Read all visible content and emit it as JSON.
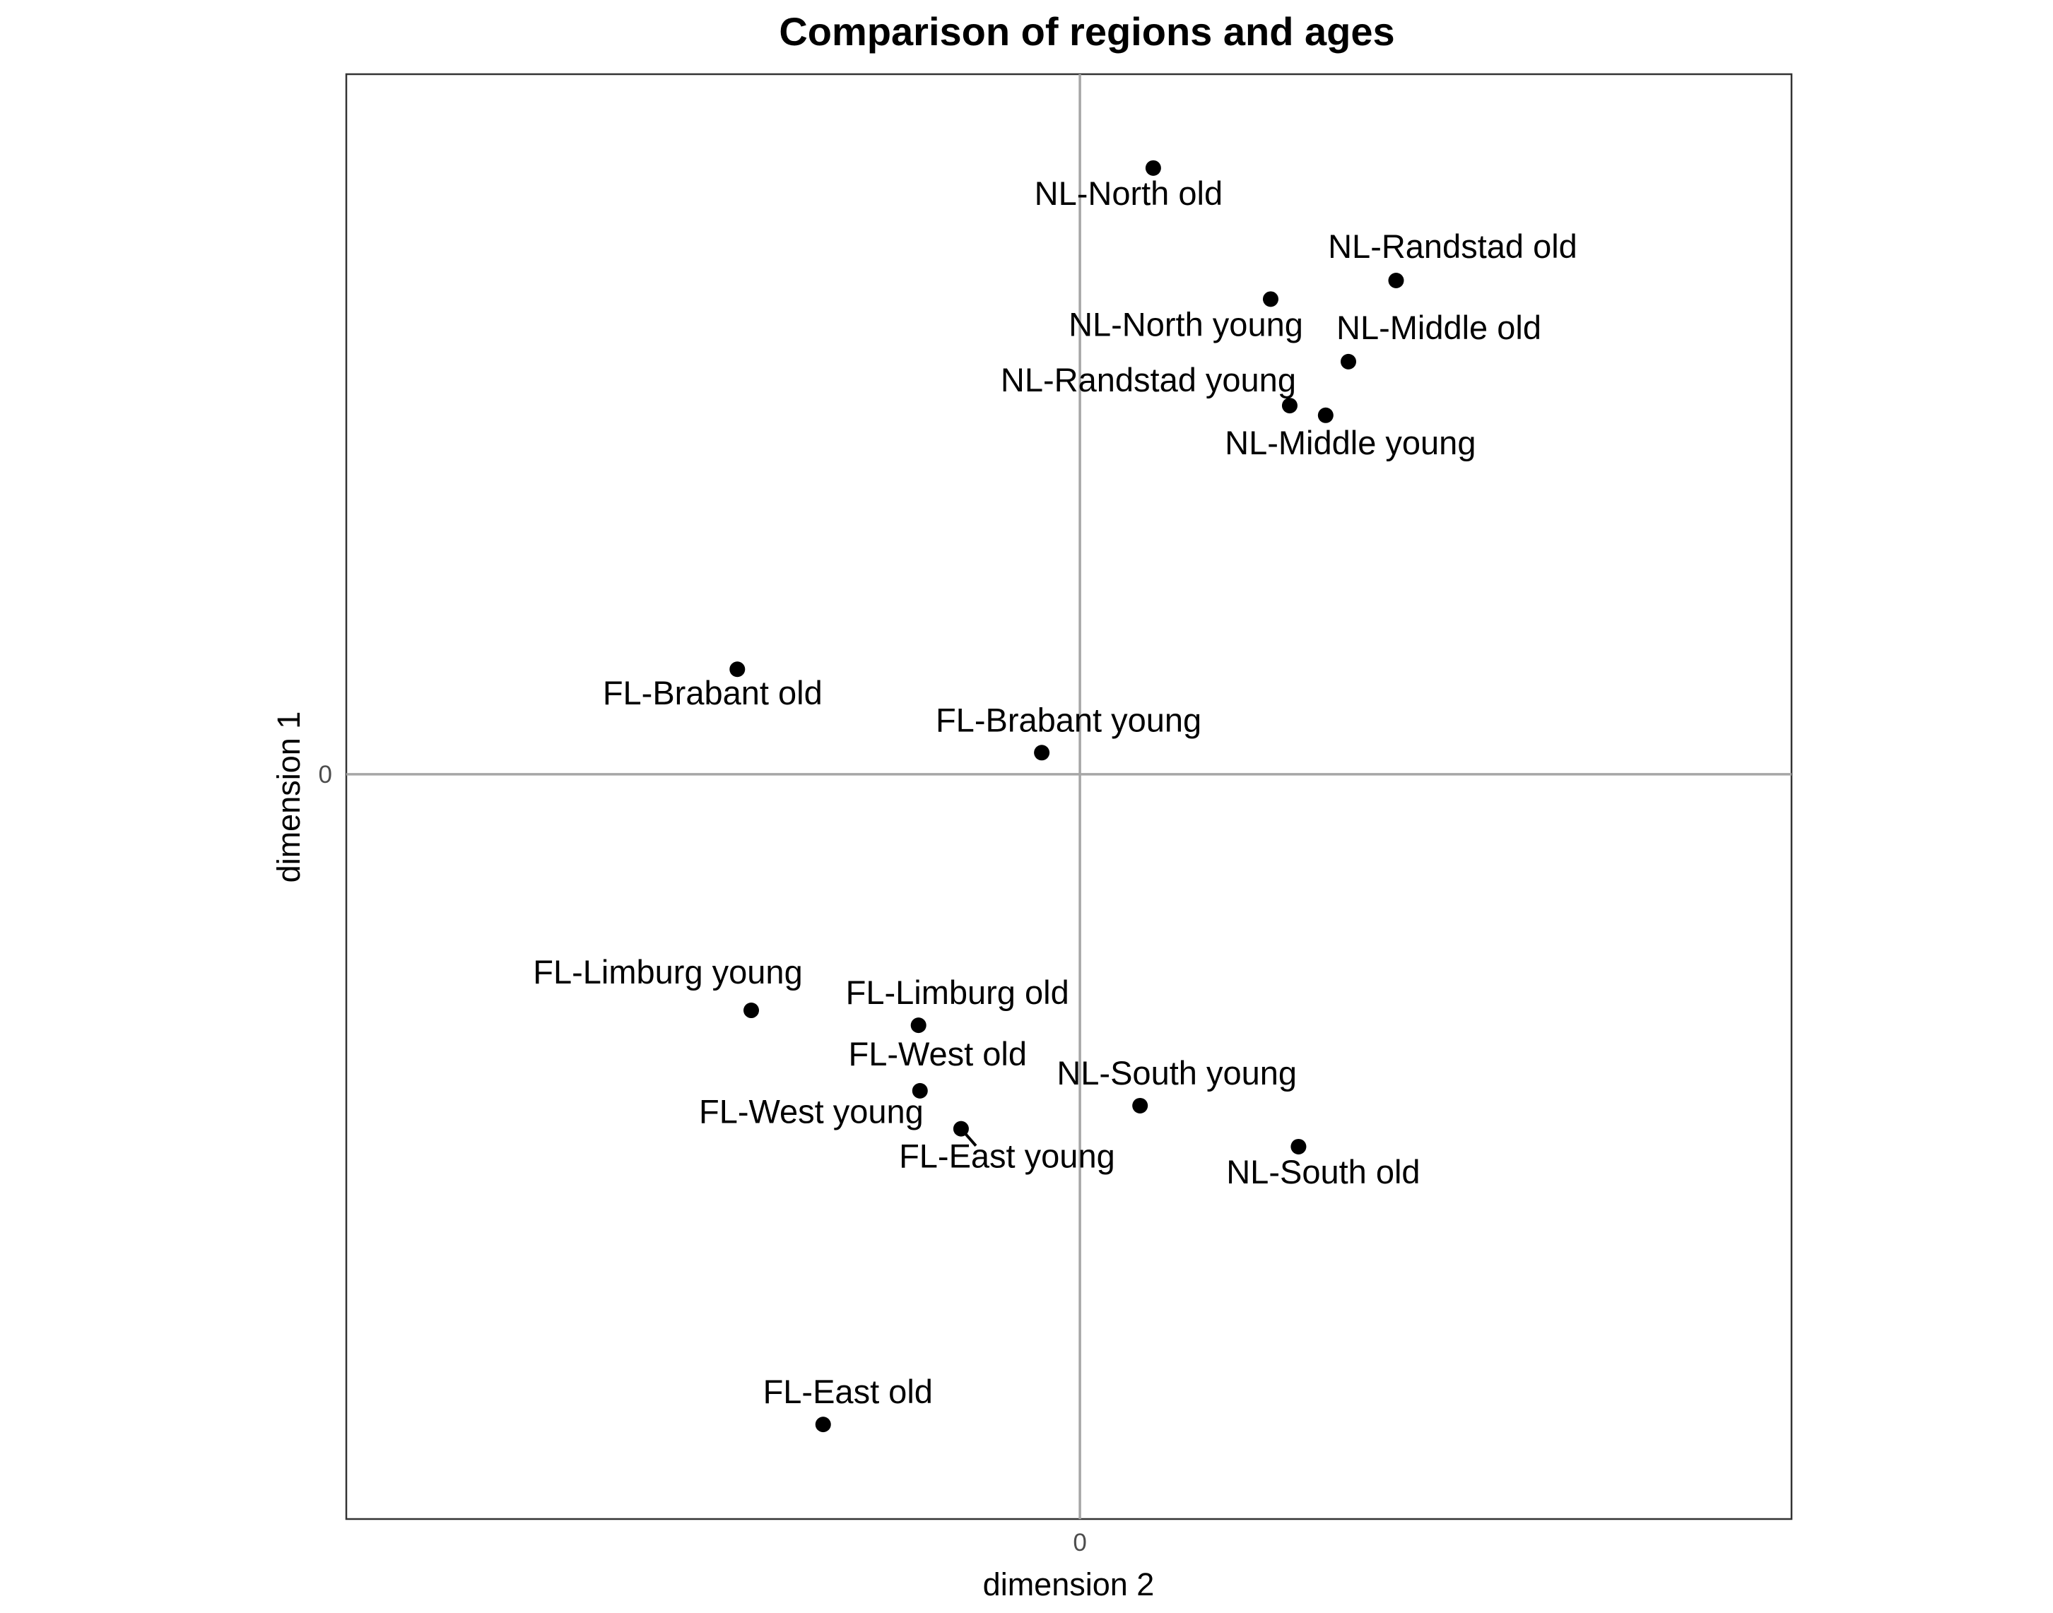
{
  "chart_data": {
    "type": "scatter",
    "title": "Comparison of regions and ages",
    "xlabel": "dimension 2",
    "ylabel": "dimension 1",
    "x_ticks": [
      "0"
    ],
    "y_ticks": [
      "0"
    ],
    "xlim": [
      -1.0,
      0.97
    ],
    "ylim": [
      -1.0,
      0.94
    ],
    "grid": false,
    "zero_lines": true,
    "points": [
      {
        "label": "NL-North old",
        "x": 0.1,
        "y": 0.814
      },
      {
        "label": "NL-Randstad old",
        "x": 0.431,
        "y": 0.663
      },
      {
        "label": "NL-North young",
        "x": 0.26,
        "y": 0.638
      },
      {
        "label": "NL-Middle old",
        "x": 0.366,
        "y": 0.554
      },
      {
        "label": "NL-Randstad young",
        "x": 0.286,
        "y": 0.495
      },
      {
        "label": "NL-Middle young",
        "x": 0.335,
        "y": 0.482
      },
      {
        "label": "FL-Brabant old",
        "x": -0.467,
        "y": 0.141
      },
      {
        "label": "FL-Brabant young",
        "x": -0.052,
        "y": 0.029
      },
      {
        "label": "FL-Limburg young",
        "x": -0.448,
        "y": -0.317
      },
      {
        "label": "FL-Limburg old",
        "x": -0.22,
        "y": -0.337
      },
      {
        "label": "FL-West old",
        "x": -0.218,
        "y": -0.425
      },
      {
        "label": "NL-South young",
        "x": 0.082,
        "y": -0.445
      },
      {
        "label": "FL-West young",
        "x": -0.162,
        "y": -0.476
      },
      {
        "label": "FL-East young",
        "x": -0.162,
        "y": -0.476
      },
      {
        "label": "NL-South old",
        "x": 0.298,
        "y": -0.5
      },
      {
        "label": "FL-East old",
        "x": -0.35,
        "y": -0.873
      }
    ]
  }
}
